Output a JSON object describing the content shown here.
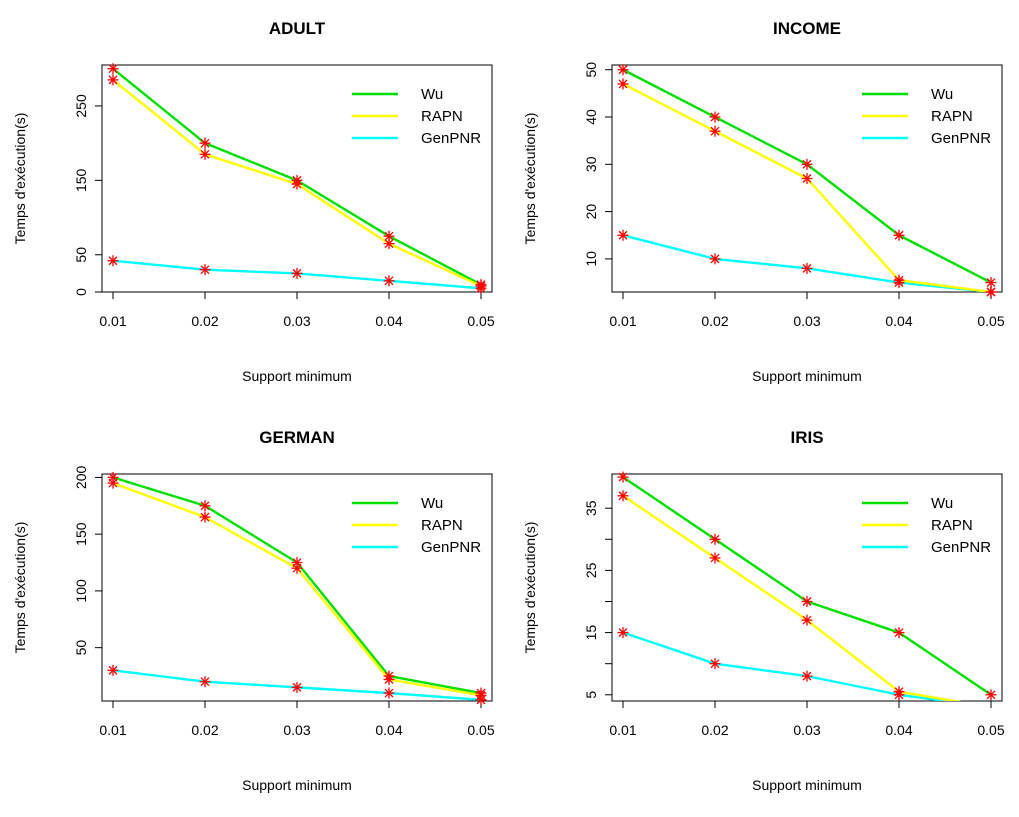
{
  "chart_data": [
    {
      "type": "line",
      "title": "ADULT",
      "xlabel": "Support minimum",
      "ylabel": "Temps d'exécution(s)",
      "x": [
        0.01,
        0.02,
        0.03,
        0.04,
        0.05
      ],
      "x_tick_labels": [
        "0.01",
        "0.02",
        "0.03",
        "0.04",
        "0.05"
      ],
      "xlim": [
        0.01,
        0.05
      ],
      "ylim": [
        0,
        305
      ],
      "y_ticks": [
        0,
        50,
        150,
        250
      ],
      "y_tick_labels": [
        "0",
        "50",
        "150",
        "250"
      ],
      "legend_position": "top-right",
      "series": [
        {
          "name": "Wu",
          "color": "#00e000",
          "values": [
            300,
            200,
            150,
            75,
            10
          ]
        },
        {
          "name": "RAPN",
          "color": "#ffff00",
          "values": [
            285,
            185,
            145,
            65,
            8
          ]
        },
        {
          "name": "GenPNR",
          "color": "#00ffff",
          "values": [
            42,
            30,
            25,
            15,
            5
          ]
        }
      ],
      "marker_color": "#ff0000"
    },
    {
      "type": "line",
      "title": "INCOME",
      "xlabel": "Support minimum",
      "ylabel": "Temps d'exécution(s)",
      "x": [
        0.01,
        0.02,
        0.03,
        0.04,
        0.05
      ],
      "x_tick_labels": [
        "0.01",
        "0.02",
        "0.03",
        "0.04",
        "0.05"
      ],
      "xlim": [
        0.01,
        0.05
      ],
      "ylim": [
        3,
        51
      ],
      "y_ticks": [
        10,
        20,
        30,
        40,
        50
      ],
      "y_tick_labels": [
        "10",
        "20",
        "30",
        "40",
        "50"
      ],
      "legend_position": "top-right",
      "series": [
        {
          "name": "Wu",
          "color": "#00e000",
          "values": [
            50,
            40,
            30,
            15,
            5
          ]
        },
        {
          "name": "RAPN",
          "color": "#ffff00",
          "values": [
            47,
            37,
            27,
            5.5,
            3
          ]
        },
        {
          "name": "GenPNR",
          "color": "#00ffff",
          "values": [
            15,
            10,
            8,
            5,
            3
          ]
        }
      ],
      "marker_color": "#ff0000"
    },
    {
      "type": "line",
      "title": "GERMAN",
      "xlabel": "Support minimum",
      "ylabel": "Temps d'exécution(s)",
      "x": [
        0.01,
        0.02,
        0.03,
        0.04,
        0.05
      ],
      "x_tick_labels": [
        "0.01",
        "0.02",
        "0.03",
        "0.04",
        "0.05"
      ],
      "xlim": [
        0.01,
        0.05
      ],
      "ylim": [
        3,
        203
      ],
      "y_ticks": [
        50,
        100,
        150,
        200
      ],
      "y_tick_labels": [
        "50",
        "100",
        "150",
        "200"
      ],
      "legend_position": "top-right",
      "series": [
        {
          "name": "Wu",
          "color": "#00e000",
          "values": [
            200,
            175,
            125,
            25,
            10
          ]
        },
        {
          "name": "RAPN",
          "color": "#ffff00",
          "values": [
            195,
            165,
            120,
            22,
            8
          ]
        },
        {
          "name": "GenPNR",
          "color": "#00ffff",
          "values": [
            30,
            20,
            15,
            10,
            4
          ]
        }
      ],
      "marker_color": "#ff0000"
    },
    {
      "type": "line",
      "title": "IRIS",
      "xlabel": "Support minimum",
      "ylabel": "Temps d'exécution(s)",
      "x": [
        0.01,
        0.02,
        0.03,
        0.04,
        0.05
      ],
      "x_tick_labels": [
        "0.01",
        "0.02",
        "0.03",
        "0.04",
        "0.05"
      ],
      "xlim": [
        0.01,
        0.05
      ],
      "ylim": [
        4,
        40.5
      ],
      "y_ticks": [
        5,
        10,
        15,
        20,
        25,
        30,
        35
      ],
      "y_tick_labels": [
        "5",
        "",
        "15",
        "",
        "25",
        "",
        "35"
      ],
      "legend_position": "top-right",
      "series": [
        {
          "name": "Wu",
          "color": "#00e000",
          "values": [
            40,
            30,
            20,
            15,
            5
          ]
        },
        {
          "name": "RAPN",
          "color": "#ffff00",
          "values": [
            37,
            27,
            17,
            5.5,
            3
          ]
        },
        {
          "name": "GenPNR",
          "color": "#00ffff",
          "values": [
            15,
            10,
            8,
            5,
            3
          ]
        }
      ],
      "marker_color": "#ff0000"
    }
  ]
}
